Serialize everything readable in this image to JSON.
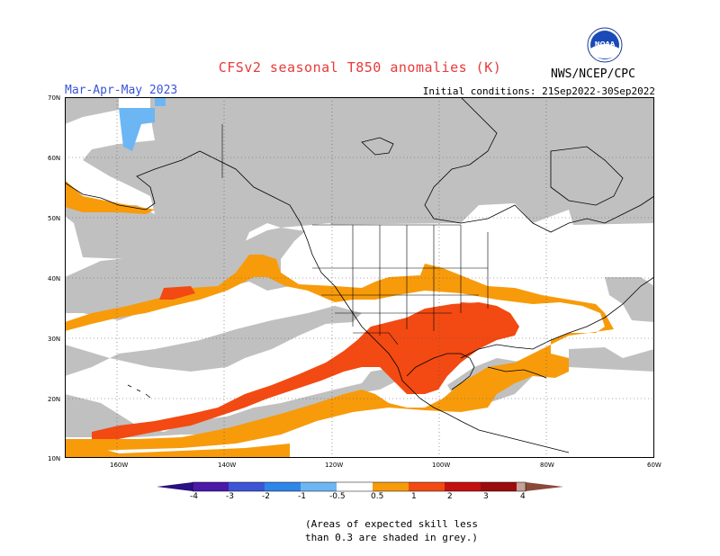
{
  "title": "CFSv2 seasonal T850 anomalies (K)",
  "season": "Mar-Apr-May 2023",
  "initial_conditions": "Initial conditions: 21Sep2022-30Sep2022",
  "agency": "NWS/NCEP/CPC",
  "logo_text": "NOAA",
  "lat_labels": [
    "70N",
    "60N",
    "50N",
    "40N",
    "30N",
    "20N",
    "10N"
  ],
  "lon_labels": [
    "160W",
    "140W",
    "120W",
    "100W",
    "80W",
    "60W"
  ],
  "colorbar": {
    "labels": [
      "-4",
      "-3",
      "-2",
      "-1",
      "-0.5",
      "0.5",
      "1",
      "2",
      "3",
      "4"
    ],
    "colors": [
      "#4a1aa8",
      "#3c55d6",
      "#2f86e8",
      "#6cb6f4",
      "#ffffff",
      "#f79b0b",
      "#f24a12",
      "#c41010",
      "#9c0c0c",
      "#c8a096",
      "#8a4a3a"
    ]
  },
  "skill_note": [
    "(Areas of expected skill less",
    "than 0.3 are shaded in grey.)"
  ],
  "legend_colors": {
    "grey": "#c0c0c0",
    "cat_0_5": "#f79b0b",
    "cat_1": "#f24a12",
    "cat_neg": "#6cb6f4"
  }
}
